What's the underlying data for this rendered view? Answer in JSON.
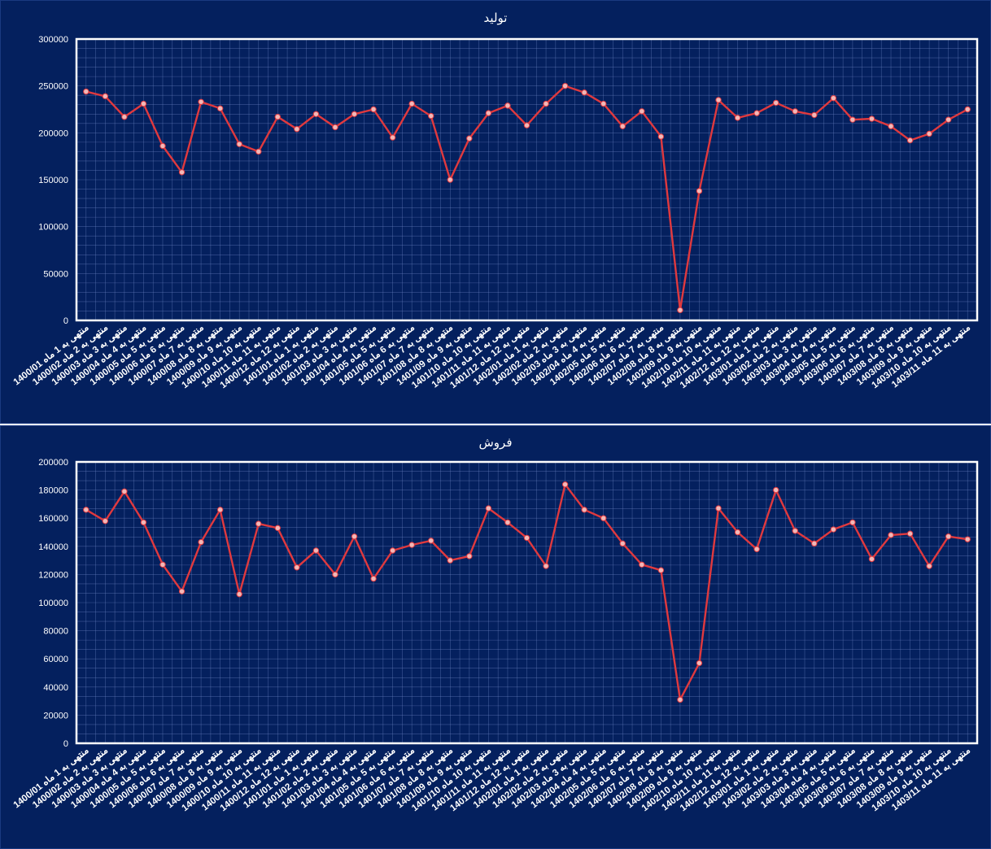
{
  "chart_data": [
    {
      "type": "line",
      "title": "تولید",
      "xlabel": "",
      "ylabel": "",
      "ylim": [
        0,
        300000
      ],
      "yticks": [
        0,
        50000,
        100000,
        150000,
        200000,
        250000,
        300000
      ],
      "grid": true,
      "colors": {
        "background": "#04205e",
        "line": "#e0393e",
        "marker": "#f2b8b8",
        "grid": "#6f86c4",
        "frame": "#ffffff",
        "text": "#ffffff"
      },
      "categories": [
        "1400/01 منتهی به 1 ماه",
        "1400/02 منتهی به 2 ماه",
        "1400/03 منتهی به 3 ماه",
        "1400/04 منتهی به 4 ماه",
        "1400/05 منتهی به 5 ماه",
        "1400/06 منتهی به 6 ماه",
        "1400/07 منتهی به 7 ماه",
        "1400/08 منتهی به 8 ماه",
        "1400/09 منتهی به 9 ماه",
        "1400/10 منتهی به 10 ماه",
        "1400/11 منتهی به 11 ماه",
        "1400/12 منتهی به 12 ماه",
        "1401/01 منتهی به 1 ماه",
        "1401/02 منتهی به 2 ماه",
        "1401/03 منتهی به 3 ماه",
        "1401/04 منتهی به 4 ماه",
        "1401/05 منتهی به 5 ماه",
        "1401/06 منتهی به 6 ماه",
        "1401/07 منتهی به 7 ماه",
        "1401/08 منتهی به 8 ماه",
        "1401/09 منتهی به 9 ماه",
        "1401/10 منتهی به 10 ماه",
        "1401/11 منتهی به 11 ماه",
        "1401/12 منتهی به 12 ماه",
        "1402/01 منتهی به 1 ماه",
        "1402/02 منتهی به 2 ماه",
        "1402/03 منتهی به 3 ماه",
        "1402/04 منتهی به 4 ماه",
        "1402/05 منتهی به 5 ماه",
        "1402/06 منتهی به 6 ماه",
        "1402/07 منتهی به 7 ماه",
        "1402/08 منتهی به 8 ماه",
        "1402/09 منتهی به 9 ماه",
        "1402/10 منتهی به 10 ماه",
        "1402/11 منتهی به 11 ماه",
        "1402/12 منتهی به 12 ماه",
        "1403/01 منتهی به 1 ماه",
        "1403/02 منتهی به 2 ماه",
        "1403/03 منتهی به 3 ماه",
        "1403/04 منتهی به 4 ماه",
        "1403/05 منتهی به 5 ماه",
        "1403/06 منتهی به 6 ماه",
        "1403/07 منتهی به 7 ماه",
        "1403/08 منتهی به 8 ماه",
        "1403/09 منتهی به 9 ماه",
        "1403/10 منتهی به 10 ماه",
        "1403/11 منتهی به 11 ماه"
      ],
      "series": [
        {
          "name": "",
          "values": [
            244000,
            239000,
            217000,
            231000,
            186000,
            158000,
            233000,
            226000,
            188000,
            180000,
            217000,
            204000,
            220000,
            206000,
            220000,
            225000,
            195000,
            231000,
            218000,
            150000,
            194000,
            221000,
            229000,
            208000,
            231000,
            250000,
            243000,
            231000,
            207000,
            223000,
            196000,
            11000,
            138000,
            235000,
            216000,
            221000,
            232000,
            223000,
            219000,
            237000,
            214000,
            215000,
            207000,
            192000,
            199000,
            214000,
            225000
          ]
        }
      ]
    },
    {
      "type": "line",
      "title": "فروش",
      "xlabel": "",
      "ylabel": "",
      "ylim": [
        0,
        200000
      ],
      "yticks": [
        0,
        20000,
        40000,
        60000,
        80000,
        100000,
        120000,
        140000,
        160000,
        180000,
        200000
      ],
      "grid": true,
      "colors": {
        "background": "#04205e",
        "line": "#e0393e",
        "marker": "#f2b8b8",
        "grid": "#6f86c4",
        "frame": "#ffffff",
        "text": "#ffffff"
      },
      "categories": [
        "1400/01 منتهی به 1 ماه",
        "1400/02 منتهی به 2 ماه",
        "1400/03 منتهی به 3 ماه",
        "1400/04 منتهی به 4 ماه",
        "1400/05 منتهی به 5 ماه",
        "1400/06 منتهی به 6 ماه",
        "1400/07 منتهی به 7 ماه",
        "1400/08 منتهی به 8 ماه",
        "1400/09 منتهی به 9 ماه",
        "1400/10 منتهی به 10 ماه",
        "1400/11 منتهی به 11 ماه",
        "1400/12 منتهی به 12 ماه",
        "1401/01 منتهی به 1 ماه",
        "1401/02 منتهی به 2 ماه",
        "1401/03 منتهی به 3 ماه",
        "1401/04 منتهی به 4 ماه",
        "1401/05 منتهی به 5 ماه",
        "1401/06 منتهی به 6 ماه",
        "1401/07 منتهی به 7 ماه",
        "1401/08 منتهی به 8 ماه",
        "1401/09 منتهی به 9 ماه",
        "1401/10 منتهی به 10 ماه",
        "1401/11 منتهی به 11 ماه",
        "1401/12 منتهی به 12 ماه",
        "1402/01 منتهی به 1 ماه",
        "1402/02 منتهی به 2 ماه",
        "1402/03 منتهی به 3 ماه",
        "1402/04 منتهی به 4 ماه",
        "1402/05 منتهی به 5 ماه",
        "1402/06 منتهی به 6 ماه",
        "1402/07 منتهی به 7 ماه",
        "1402/08 منتهی به 8 ماه",
        "1402/09 منتهی به 9 ماه",
        "1402/10 منتهی به 10 ماه",
        "1402/11 منتهی به 11 ماه",
        "1402/12 منتهی به 12 ماه",
        "1403/01 منتهی به 1 ماه",
        "1403/02 منتهی به 2 ماه",
        "1403/03 منتهی به 3 ماه",
        "1403/04 منتهی به 4 ماه",
        "1403/05 منتهی به 5 ماه",
        "1403/06 منتهی به 6 ماه",
        "1403/07 منتهی به 7 ماه",
        "1403/08 منتهی به 8 ماه",
        "1403/09 منتهی به 9 ماه",
        "1403/10 منتهی به 10 ماه",
        "1403/11 منتهی به 11 ماه"
      ],
      "series": [
        {
          "name": "",
          "values": [
            166000,
            158000,
            179000,
            157000,
            127000,
            108000,
            143000,
            166000,
            106000,
            156000,
            153000,
            125000,
            137000,
            120000,
            147000,
            117000,
            137000,
            141000,
            144000,
            130000,
            133000,
            167000,
            157000,
            146000,
            126000,
            184000,
            166000,
            160000,
            142000,
            127000,
            123000,
            31000,
            57000,
            167000,
            150000,
            138000,
            180000,
            151000,
            142000,
            152000,
            157000,
            131000,
            148000,
            149000,
            126000,
            147000,
            145000
          ]
        }
      ]
    }
  ]
}
